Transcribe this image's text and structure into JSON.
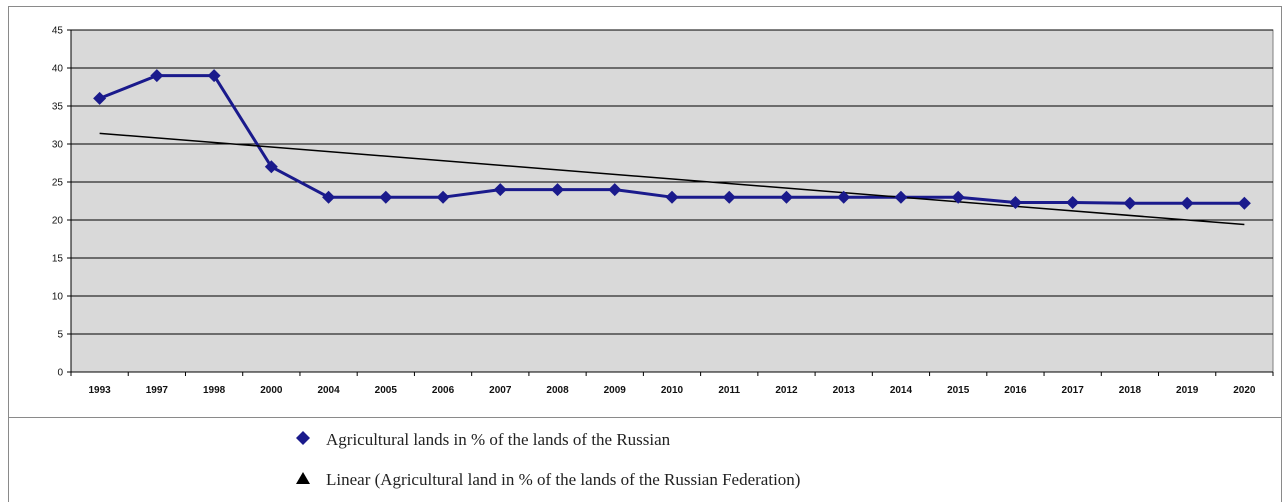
{
  "chart_data": {
    "type": "line",
    "categories": [
      "1993",
      "1997",
      "1998",
      "2000",
      "2004",
      "2005",
      "2006",
      "2007",
      "2008",
      "2009",
      "2010",
      "2011",
      "2012",
      "2013",
      "2014",
      "2015",
      "2016",
      "2017",
      "2018",
      "2019",
      "2020"
    ],
    "series": [
      {
        "name": "Agricultural lands in % of the lands of the Russian",
        "color": "#1a1a8c",
        "marker": "diamond",
        "values": [
          36,
          39,
          39,
          27,
          23,
          23,
          23,
          24,
          24,
          24,
          23,
          23,
          23,
          23,
          23,
          23,
          22.3,
          22.3,
          22.2,
          22.2,
          22.2
        ]
      },
      {
        "name": "Linear (Agricultural land in % of the lands of the Russian Federation)",
        "color": "#000000",
        "marker": "triangle",
        "type": "trendline",
        "start": 31.4,
        "end": 19.4
      }
    ],
    "yticks": [
      "0",
      "5",
      "10",
      "15",
      "20",
      "25",
      "30",
      "35",
      "40",
      "45"
    ],
    "ylim": [
      0,
      45
    ],
    "grid": true,
    "legend_position": "bottom",
    "plot_background": "#d9d9d9"
  }
}
